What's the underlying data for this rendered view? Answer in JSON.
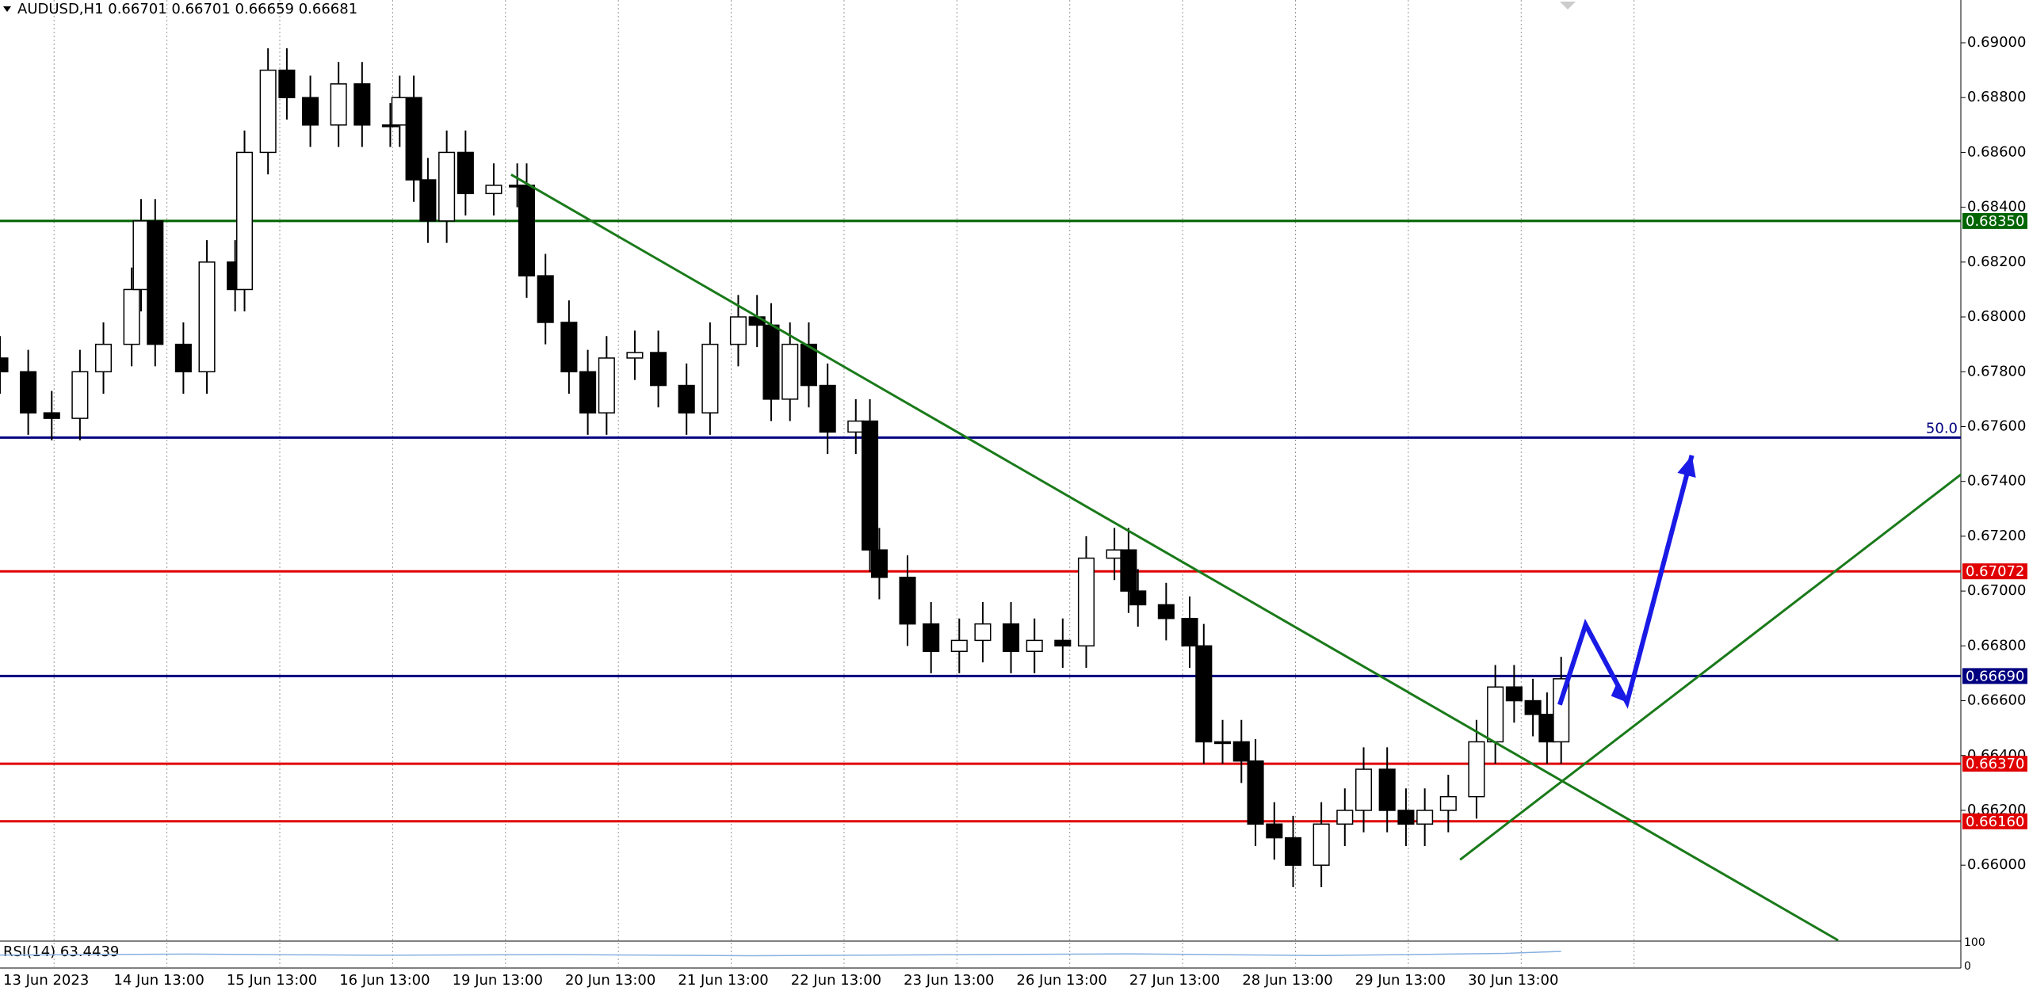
{
  "chart_data": {
    "type": "candlestick",
    "title": "AUDUSD,H1  0.66701 0.66701 0.66659 0.66681",
    "xlim": [
      0,
      417
    ],
    "ylim": [
      0.65726,
      0.69156
    ],
    "yticks": [
      {
        "value": 0.69,
        "label": "0.69000"
      },
      {
        "value": 0.688,
        "label": "0.68800"
      },
      {
        "value": 0.686,
        "label": "0.68600"
      },
      {
        "value": 0.684,
        "label": "0.68400"
      },
      {
        "value": 0.682,
        "label": "0.68200"
      },
      {
        "value": 0.68,
        "label": "0.68000"
      },
      {
        "value": 0.678,
        "label": "0.67800"
      },
      {
        "value": 0.676,
        "label": "0.67600"
      },
      {
        "value": 0.674,
        "label": "0.67400"
      },
      {
        "value": 0.672,
        "label": "0.67200"
      },
      {
        "value": 0.67,
        "label": "0.67000"
      },
      {
        "value": 0.668,
        "label": "0.66800"
      },
      {
        "value": 0.666,
        "label": "0.66600"
      },
      {
        "value": 0.664,
        "label": "0.66400"
      },
      {
        "value": 0.662,
        "label": "0.66200"
      },
      {
        "value": 0.66,
        "label": "0.66000"
      }
    ],
    "xticks": [
      {
        "value": 11.5,
        "label": "13 Jun 2023"
      },
      {
        "value": 35.5,
        "label": "14 Jun 13:00"
      },
      {
        "value": 59.5,
        "label": "15 Jun 13:00"
      },
      {
        "value": 83.5,
        "label": "16 Jun 13:00"
      },
      {
        "value": 107.5,
        "label": "19 Jun 13:00"
      },
      {
        "value": 131.5,
        "label": "20 Jun 13:00"
      },
      {
        "value": 155.5,
        "label": "21 Jun 13:00"
      },
      {
        "value": 179.5,
        "label": "22 Jun 13:00"
      },
      {
        "value": 203.5,
        "label": "23 Jun 13:00"
      },
      {
        "value": 227.5,
        "label": "26 Jun 13:00"
      },
      {
        "value": 251.5,
        "label": "27 Jun 13:00"
      },
      {
        "value": 275.5,
        "label": "28 Jun 13:00"
      },
      {
        "value": 299.5,
        "label": "29 Jun 13:00"
      },
      {
        "value": 323.5,
        "label": "30 Jun 13:00"
      },
      {
        "value": 347.5,
        "label": null
      }
    ],
    "candles": {
      "x": [
        0,
        6,
        11,
        17,
        22,
        28,
        30,
        33,
        39,
        44,
        50,
        52,
        57,
        61,
        66,
        72,
        77,
        83,
        85,
        88,
        91,
        95,
        99,
        105,
        110,
        112,
        116,
        121,
        125,
        129,
        135,
        140,
        146,
        151,
        157,
        161,
        164,
        168,
        172,
        176,
        182,
        185,
        187,
        193,
        198,
        204,
        209,
        215,
        220,
        226,
        231,
        237,
        240,
        242,
        248,
        253,
        256,
        260,
        264,
        267,
        271,
        275,
        281,
        286,
        290,
        295,
        299,
        303,
        308,
        314,
        318,
        322,
        326,
        329,
        332
      ],
      "open": [
        0.6785,
        0.678,
        0.6765,
        0.6763,
        0.678,
        0.679,
        0.681,
        0.6835,
        0.679,
        0.678,
        0.682,
        0.681,
        0.686,
        0.689,
        0.688,
        0.687,
        0.6885,
        0.687,
        0.687,
        0.688,
        0.685,
        0.6835,
        0.686,
        0.6845,
        0.6848,
        0.6848,
        0.6815,
        0.6798,
        0.678,
        0.6765,
        0.6785,
        0.6787,
        0.6775,
        0.6765,
        0.679,
        0.68,
        0.6797,
        0.677,
        0.679,
        0.6775,
        0.6758,
        0.6762,
        0.6715,
        0.6705,
        0.6688,
        0.6678,
        0.6682,
        0.6688,
        0.6678,
        0.6682,
        0.668,
        0.6712,
        0.6715,
        0.67,
        0.6695,
        0.669,
        0.668,
        0.6645,
        0.6645,
        0.6638,
        0.6615,
        0.661,
        0.66,
        0.6615,
        0.662,
        0.6635,
        0.662,
        0.6615,
        0.662,
        0.6625,
        0.6645,
        0.6665,
        0.666,
        0.6655,
        0.6645
      ],
      "high": [
        0.6793,
        0.6788,
        0.6773,
        0.6788,
        0.6798,
        0.6818,
        0.6843,
        0.6843,
        0.6798,
        0.6828,
        0.6828,
        0.6868,
        0.6898,
        0.6898,
        0.6888,
        0.6893,
        0.6893,
        0.6878,
        0.6888,
        0.6888,
        0.6858,
        0.6868,
        0.6868,
        0.6856,
        0.6856,
        0.6856,
        0.6823,
        0.6806,
        0.6788,
        0.6793,
        0.6795,
        0.6795,
        0.6783,
        0.6798,
        0.6808,
        0.6808,
        0.6805,
        0.6798,
        0.6798,
        0.6783,
        0.677,
        0.677,
        0.6723,
        0.6713,
        0.6696,
        0.669,
        0.6696,
        0.6696,
        0.669,
        0.669,
        0.672,
        0.6723,
        0.6723,
        0.6708,
        0.6703,
        0.6698,
        0.6688,
        0.6653,
        0.6653,
        0.6646,
        0.6623,
        0.6618,
        0.6623,
        0.6628,
        0.6643,
        0.6643,
        0.6628,
        0.6628,
        0.6633,
        0.6653,
        0.6673,
        0.6673,
        0.6668,
        0.6663,
        0.6676
      ],
      "low": [
        0.6772,
        0.6757,
        0.6755,
        0.6755,
        0.6772,
        0.6782,
        0.6802,
        0.6782,
        0.6772,
        0.6772,
        0.6802,
        0.6802,
        0.6852,
        0.6872,
        0.6862,
        0.6862,
        0.6862,
        0.6862,
        0.6862,
        0.6842,
        0.6827,
        0.6827,
        0.6837,
        0.6837,
        0.684,
        0.6807,
        0.679,
        0.6772,
        0.6757,
        0.6757,
        0.6777,
        0.6767,
        0.6757,
        0.6757,
        0.6782,
        0.6789,
        0.6762,
        0.6762,
        0.6767,
        0.675,
        0.675,
        0.6707,
        0.6697,
        0.668,
        0.667,
        0.667,
        0.6674,
        0.667,
        0.667,
        0.6672,
        0.6672,
        0.6704,
        0.6692,
        0.6687,
        0.6682,
        0.6672,
        0.6637,
        0.6637,
        0.663,
        0.6607,
        0.6602,
        0.6592,
        0.6592,
        0.6607,
        0.6612,
        0.6612,
        0.6607,
        0.6607,
        0.6612,
        0.6617,
        0.6637,
        0.6652,
        0.6647,
        0.6637,
        0.6637
      ],
      "close": [
        0.678,
        0.6765,
        0.6763,
        0.678,
        0.679,
        0.681,
        0.6835,
        0.679,
        0.678,
        0.682,
        0.681,
        0.686,
        0.689,
        0.688,
        0.687,
        0.6885,
        0.687,
        0.687,
        0.688,
        0.685,
        0.6835,
        0.686,
        0.6845,
        0.6848,
        0.6848,
        0.6815,
        0.6798,
        0.678,
        0.6765,
        0.6785,
        0.6787,
        0.6775,
        0.6765,
        0.679,
        0.68,
        0.6797,
        0.677,
        0.679,
        0.6775,
        0.6758,
        0.6762,
        0.6715,
        0.6705,
        0.6688,
        0.6678,
        0.6682,
        0.6688,
        0.6678,
        0.6682,
        0.668,
        0.6712,
        0.6715,
        0.67,
        0.6695,
        0.669,
        0.668,
        0.6645,
        0.6645,
        0.6638,
        0.6615,
        0.661,
        0.66,
        0.6615,
        0.662,
        0.6635,
        0.662,
        0.6615,
        0.662,
        0.6625,
        0.6645,
        0.6665,
        0.666,
        0.6655,
        0.6645,
        0.6668
      ]
    },
    "levels": [
      {
        "value": 0.6835,
        "color": "#006400",
        "label": "0.68350"
      },
      {
        "value": 0.6756,
        "color": "#000080",
        "label": "50.0",
        "style": "text"
      },
      {
        "value": 0.67072,
        "color": "#e00000",
        "label": "0.67072"
      },
      {
        "value": 0.6669,
        "color": "#000080",
        "label": "0.66690"
      },
      {
        "value": 0.6637,
        "color": "#e00000",
        "label": "0.66370"
      },
      {
        "value": 0.6616,
        "color": "#e00000",
        "label": "0.66160"
      }
    ],
    "trendlines": [
      {
        "color": "#1a7a1a",
        "x": [
          108.7,
          390.9
        ],
        "y": [
          0.68519,
          0.65726
        ]
      },
      {
        "color": "#1a7a1a",
        "x": [
          310.5,
          417
        ],
        "y": [
          0.6602,
          0.67425
        ]
      }
    ],
    "arrow": {
      "color": "#1a1ae6",
      "x": [
        331.7,
        337.2,
        346,
        359.8
      ],
      "y": [
        0.66585,
        0.66877,
        0.66594,
        0.67495
      ]
    },
    "rsi": {
      "label": "RSI(14) 63.4439",
      "ylim": [
        0,
        100
      ],
      "yticks": [
        100,
        0
      ],
      "x": [
        0,
        40,
        80,
        120,
        160,
        200,
        240,
        280,
        300,
        320,
        332
      ],
      "values": [
        48,
        52,
        47,
        50,
        45,
        49,
        53,
        46,
        50,
        55,
        63.4439
      ]
    }
  }
}
